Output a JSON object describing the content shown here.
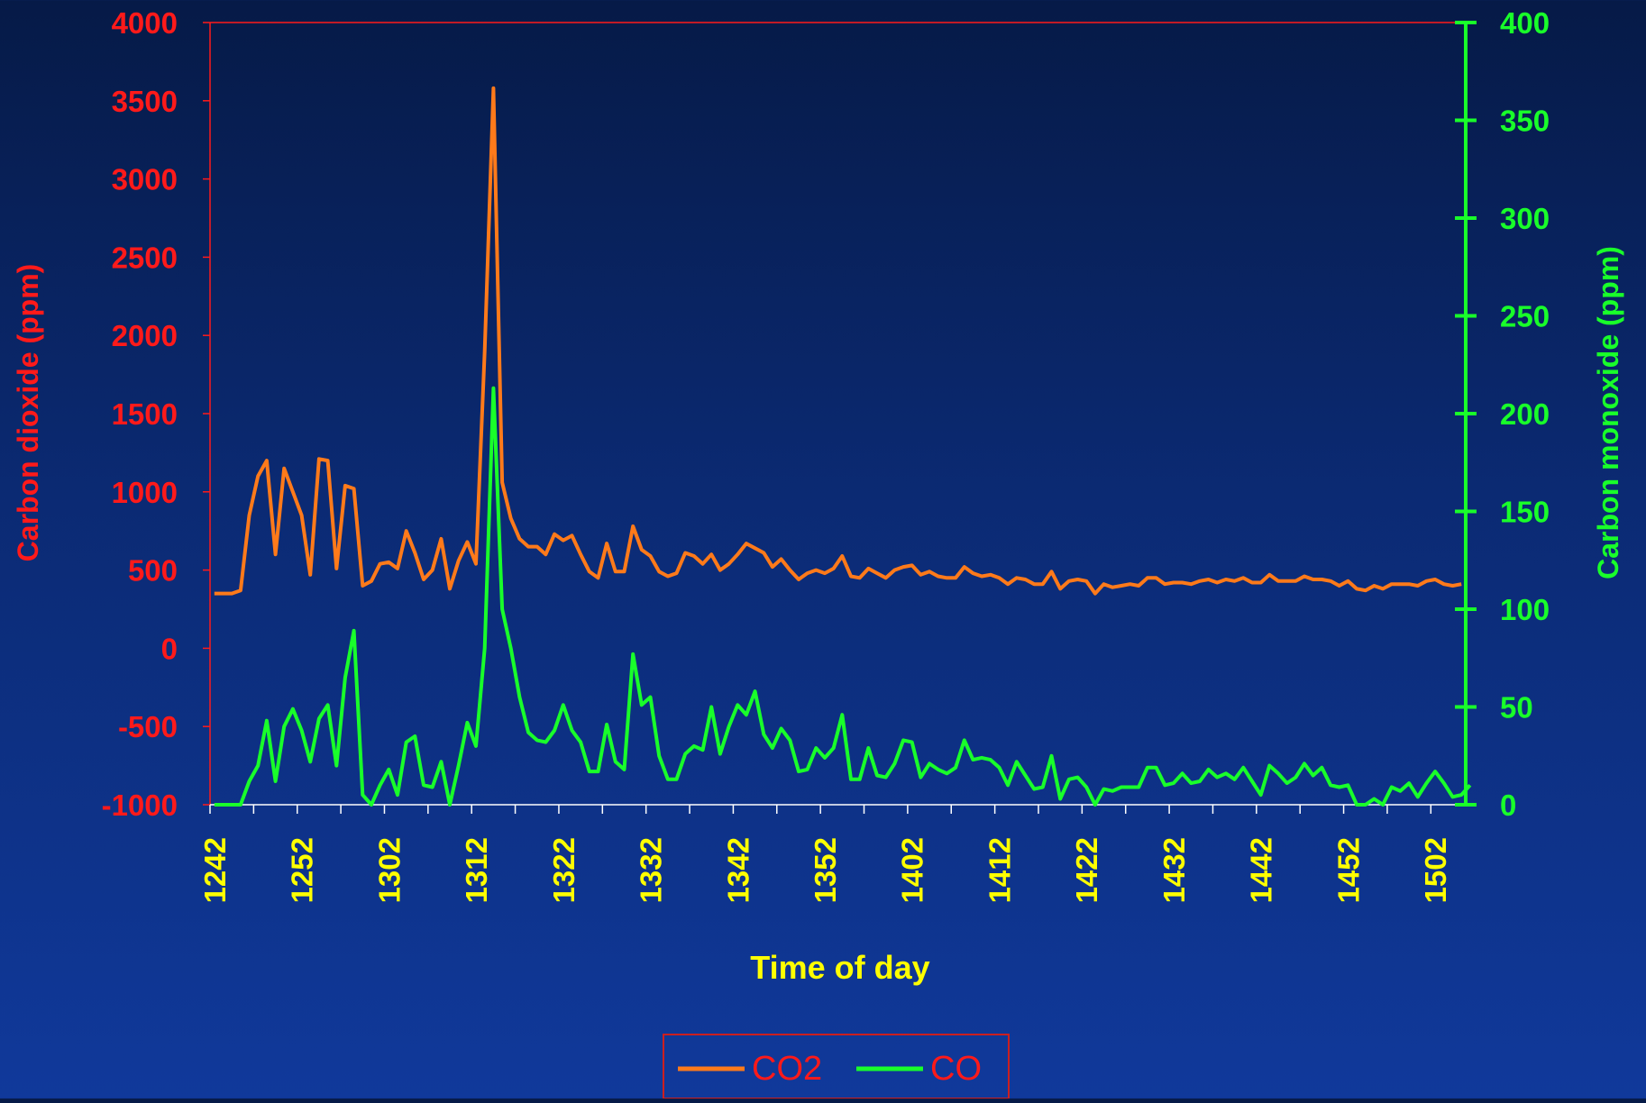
{
  "chart_data": {
    "type": "line",
    "title": "",
    "xlabel": "Time of day",
    "ylabel": "Carbon dioxide (ppm)",
    "y2label": "Carbon monoxide (ppm)",
    "ylim": [
      -1000,
      4000
    ],
    "y2lim": [
      0,
      400
    ],
    "yticks": [
      -1000,
      -500,
      0,
      500,
      1000,
      1500,
      2000,
      2500,
      3000,
      3500,
      4000
    ],
    "y2ticks": [
      0,
      50,
      100,
      150,
      200,
      250,
      300,
      350,
      400
    ],
    "x_tick_labels": [
      "1242",
      "1252",
      "1302",
      "1312",
      "1322",
      "1332",
      "1342",
      "1352",
      "1402",
      "1412",
      "1422",
      "1432",
      "1442",
      "1452",
      "1502"
    ],
    "x_count": 144,
    "grid": false,
    "legend_position": "bottom-center",
    "colors": {
      "co2": "#ff7a1a",
      "co": "#19ff2a",
      "left_axis": "#ff1a1a",
      "right_axis": "#19ff2a",
      "x_ticks": "#ffff00",
      "legend_text": "#ff1a1a",
      "legend_border": "#cc1f1f"
    },
    "series": [
      {
        "name": "CO2",
        "axis": "left",
        "values": [
          350,
          350,
          350,
          370,
          850,
          1100,
          1200,
          600,
          1150,
          1000,
          850,
          470,
          1210,
          1200,
          510,
          1040,
          1020,
          400,
          430,
          540,
          550,
          510,
          750,
          610,
          440,
          500,
          700,
          380,
          560,
          680,
          540,
          1900,
          3580,
          1060,
          830,
          700,
          650,
          650,
          600,
          730,
          690,
          720,
          600,
          490,
          450,
          670,
          490,
          490,
          780,
          630,
          590,
          490,
          460,
          480,
          610,
          590,
          540,
          600,
          500,
          540,
          600,
          670,
          640,
          610,
          520,
          570,
          500,
          440,
          480,
          500,
          480,
          510,
          590,
          460,
          450,
          510,
          480,
          450,
          500,
          520,
          530,
          470,
          490,
          460,
          450,
          450,
          520,
          480,
          460,
          470,
          450,
          410,
          450,
          440,
          410,
          410,
          490,
          380,
          430,
          440,
          430,
          350,
          410,
          390,
          400,
          410,
          400,
          450,
          450,
          410,
          420,
          420,
          410,
          430,
          440,
          420,
          440,
          430,
          450,
          420,
          420,
          470,
          430,
          430,
          430,
          460,
          440,
          440,
          430,
          400,
          430,
          380,
          370,
          400,
          380,
          410,
          410,
          410,
          400,
          430,
          440,
          410,
          400,
          410
        ]
      },
      {
        "name": "CO",
        "axis": "right",
        "values": [
          -5,
          -5,
          -5,
          -5,
          12,
          20,
          43,
          12,
          40,
          49,
          38,
          22,
          44,
          51,
          20,
          65,
          89,
          5,
          -10,
          10,
          18,
          5,
          32,
          35,
          10,
          9,
          22,
          -2,
          20,
          42,
          30,
          80,
          213,
          100,
          80,
          55,
          37,
          33,
          32,
          38,
          51,
          38,
          32,
          17,
          17,
          41,
          22,
          18,
          77,
          51,
          55,
          25,
          13,
          13,
          26,
          30,
          28,
          50,
          26,
          40,
          51,
          46,
          58,
          36,
          29,
          39,
          33,
          17,
          18,
          29,
          24,
          29,
          46,
          13,
          13,
          29,
          15,
          14,
          21,
          33,
          32,
          14,
          21,
          18,
          16,
          19,
          33,
          23,
          24,
          23,
          19,
          10,
          22,
          15,
          8,
          9,
          25,
          3,
          13,
          14,
          9,
          -2,
          8,
          7,
          9,
          9,
          9,
          19,
          19,
          10,
          11,
          16,
          11,
          12,
          18,
          14,
          16,
          13,
          19,
          12,
          5,
          20,
          16,
          11,
          14,
          21,
          15,
          19,
          10,
          9,
          10,
          0,
          0,
          3,
          0,
          9,
          7,
          11,
          4,
          11,
          17,
          11,
          4,
          5,
          10
        ]
      }
    ]
  },
  "legend": {
    "items": [
      {
        "label": "CO2"
      },
      {
        "label": "CO"
      }
    ]
  }
}
